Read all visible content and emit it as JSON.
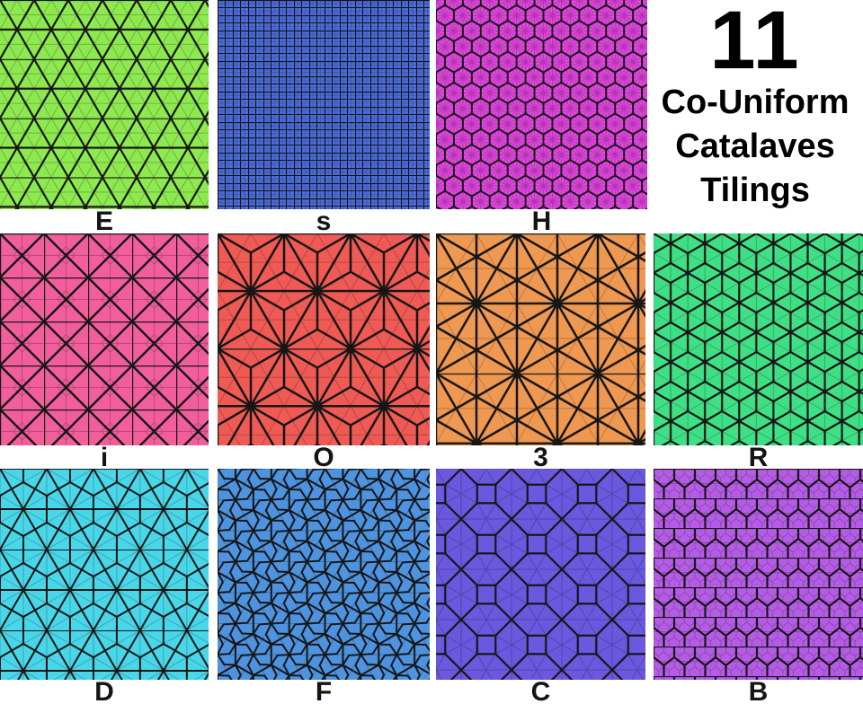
{
  "figure_title": {
    "number": "11",
    "lines": [
      "Co-Uniform",
      "Catalaves",
      "Tilings"
    ]
  },
  "line_color": "#161616",
  "faint_line_color": "rgba(0,0,0,0.22)",
  "background": "#ffffff",
  "tiles": [
    {
      "label": "E",
      "pattern": "triangular",
      "base": "#8de94f"
    },
    {
      "label": "s",
      "pattern": "square",
      "base": "#4b6cdb"
    },
    {
      "label": "H",
      "pattern": "hexagonal",
      "base": "#e246e0"
    },
    {
      "label": "i",
      "pattern": "tetrakis-square",
      "base": "#f25e9c"
    },
    {
      "label": "O",
      "pattern": "triakis-triangular",
      "base": "#ef5a54"
    },
    {
      "label": "3",
      "pattern": "kisrhombille",
      "base": "#ef9851"
    },
    {
      "label": "R",
      "pattern": "rhombille",
      "base": "#3fdf85"
    },
    {
      "label": "D",
      "pattern": "deltoidal-trihexagonal",
      "base": "#49d6e8"
    },
    {
      "label": "F",
      "pattern": "floret-pentagonal",
      "base": "#4e93e0"
    },
    {
      "label": "C",
      "pattern": "cairo-pentagonal",
      "base": "#6a58df"
    },
    {
      "label": "B",
      "pattern": "prismatic-pentagonal",
      "base": "#b55ce6"
    }
  ]
}
